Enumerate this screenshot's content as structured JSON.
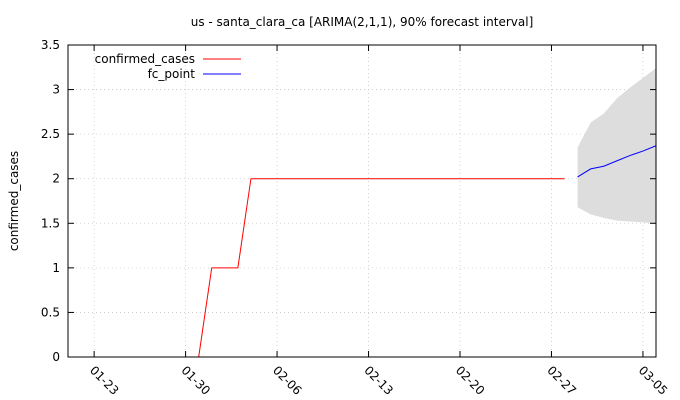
{
  "chart_data": {
    "type": "line",
    "title": "us - santa_clara_ca [ARIMA(2,1,1), 90% forecast interval]",
    "xlabel": "",
    "ylabel": "confirmed_cases",
    "x_type": "date",
    "x_ticks": [
      "01-23",
      "01-30",
      "02-06",
      "02-13",
      "02-20",
      "02-27",
      "03-05"
    ],
    "xlim": [
      "2020-01-21",
      "2020-03-06"
    ],
    "ylim": [
      0,
      3.5
    ],
    "y_ticks": [
      "0",
      "0.5",
      "1",
      "1.5",
      "2",
      "2.5",
      "3",
      "3.5"
    ],
    "grid": true,
    "legend_position": "top-left",
    "series": [
      {
        "name": "confirmed_cases",
        "color": "#ff0000",
        "x": [
          "2020-01-31",
          "2020-02-01",
          "2020-02-03",
          "2020-02-04",
          "2020-02-28"
        ],
        "y": [
          0,
          1,
          1,
          2,
          2
        ]
      },
      {
        "name": "fc_point",
        "color": "#0000ff",
        "x": [
          "2020-02-29",
          "2020-03-01",
          "2020-03-02",
          "2020-03-03",
          "2020-03-04",
          "2020-03-05",
          "2020-03-06"
        ],
        "y": [
          2.02,
          2.11,
          2.14,
          2.2,
          2.26,
          2.31,
          2.37
        ]
      }
    ],
    "forecast_interval": {
      "color": "#dddddd",
      "x": [
        "2020-02-29",
        "2020-03-01",
        "2020-03-02",
        "2020-03-03",
        "2020-03-04",
        "2020-03-05",
        "2020-03-06"
      ],
      "lower": [
        1.68,
        1.6,
        1.56,
        1.53,
        1.52,
        1.51,
        1.5
      ],
      "upper": [
        2.35,
        2.63,
        2.73,
        2.9,
        3.02,
        3.13,
        3.24
      ]
    }
  }
}
